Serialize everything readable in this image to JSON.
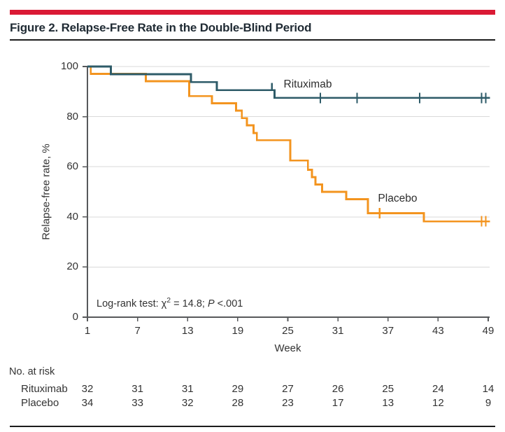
{
  "figure": {
    "title": "Figure 2. Relapse-Free Rate in the Double-Blind Period"
  },
  "colors": {
    "accent_bar": "#DA1A35",
    "rule": "#1C1C1C",
    "axis": "#57595B",
    "gridline": "#D9D9D9",
    "text": "#333333",
    "rituximab": "#2E5B68",
    "placebo": "#F3941F"
  },
  "chart_data": {
    "type": "line",
    "subtype": "kaplan-meier-step",
    "title": "",
    "xlabel": "Week",
    "ylabel": "Relapse-free rate, %",
    "xlim": [
      1,
      49
    ],
    "ylim": [
      0,
      100
    ],
    "x_ticks": [
      1,
      7,
      13,
      19,
      25,
      31,
      37,
      43,
      49
    ],
    "y_ticks": [
      0,
      20,
      40,
      60,
      80,
      100
    ],
    "grid": "horizontal",
    "legend_position": "inline-labels",
    "annotation": {
      "prefix": "Log-rank test: χ",
      "sup": "2",
      "mid": " = 14.8; ",
      "p": "P",
      "suffix": " <.001"
    },
    "series": [
      {
        "name": "Placebo",
        "color": "#F3941F",
        "label": {
          "week": 35.8,
          "pct": 46.1
        },
        "end_week": 49.2,
        "steps": [
          {
            "week": 1,
            "pct": 100
          },
          {
            "week": 1.4,
            "pct": 97.1
          },
          {
            "week": 8,
            "pct": 94.1
          },
          {
            "week": 13.2,
            "pct": 88.2
          },
          {
            "week": 15.9,
            "pct": 85.3
          },
          {
            "week": 18.8,
            "pct": 82.4
          },
          {
            "week": 19.5,
            "pct": 79.4
          },
          {
            "week": 20.1,
            "pct": 76.5
          },
          {
            "week": 20.9,
            "pct": 73.5
          },
          {
            "week": 21.3,
            "pct": 70.6
          },
          {
            "week": 25.3,
            "pct": 62.5
          },
          {
            "week": 27.4,
            "pct": 58.8
          },
          {
            "week": 27.9,
            "pct": 55.9
          },
          {
            "week": 28.3,
            "pct": 52.9
          },
          {
            "week": 29.1,
            "pct": 50.0
          },
          {
            "week": 32.0,
            "pct": 47.1
          },
          {
            "week": 34.6,
            "pct": 41.5
          },
          {
            "week": 41.3,
            "pct": 38.2
          }
        ],
        "censors": [
          {
            "week": 36.0,
            "pct": 41.5,
            "style": "cross"
          },
          {
            "week": 48.2,
            "pct": 38.2,
            "style": "cross"
          },
          {
            "week": 48.7,
            "pct": 38.2,
            "style": "cross"
          }
        ]
      },
      {
        "name": "Rituximab",
        "color": "#2E5B68",
        "label": {
          "week": 24.5,
          "pct": 91.6
        },
        "end_week": 49.2,
        "steps": [
          {
            "week": 1,
            "pct": 100
          },
          {
            "week": 3.8,
            "pct": 96.9
          },
          {
            "week": 13.4,
            "pct": 93.8
          },
          {
            "week": 16.5,
            "pct": 90.6
          },
          {
            "week": 23.4,
            "pct": 87.5
          }
        ],
        "censors": [
          {
            "week": 23.1,
            "pct": 90.6,
            "style": "up"
          },
          {
            "week": 28.9,
            "pct": 87.5,
            "style": "cross"
          },
          {
            "week": 33.3,
            "pct": 87.5,
            "style": "cross"
          },
          {
            "week": 40.8,
            "pct": 87.5,
            "style": "cross"
          },
          {
            "week": 48.2,
            "pct": 87.5,
            "style": "cross"
          },
          {
            "week": 48.7,
            "pct": 87.5,
            "style": "cross"
          }
        ]
      }
    ]
  },
  "risk_table": {
    "heading": "No. at risk",
    "weeks": [
      1,
      7,
      13,
      19,
      25,
      31,
      37,
      43,
      49
    ],
    "rows": [
      {
        "label": "Rituximab",
        "values": [
          "32",
          "31",
          "31",
          "29",
          "27",
          "26",
          "25",
          "24",
          "14"
        ]
      },
      {
        "label": "Placebo",
        "values": [
          "34",
          "33",
          "32",
          "28",
          "23",
          "17",
          "13",
          "12",
          "9"
        ]
      }
    ]
  }
}
